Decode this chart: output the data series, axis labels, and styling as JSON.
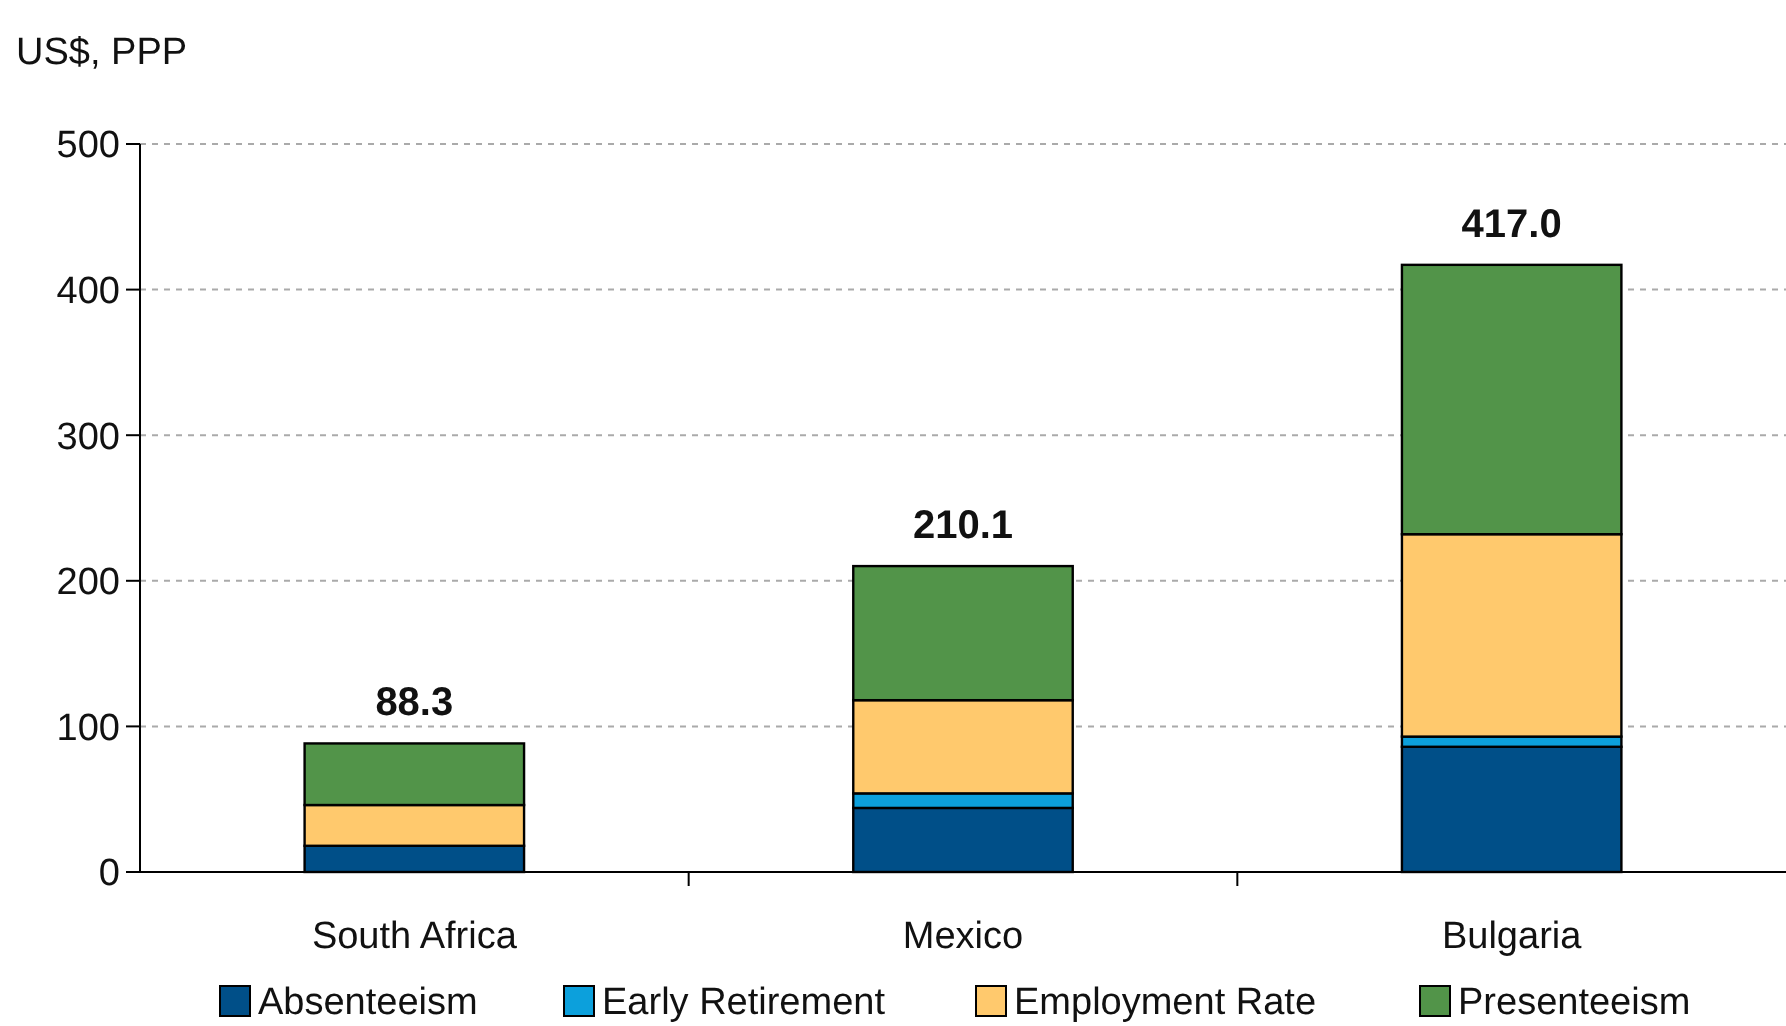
{
  "chart_data": {
    "type": "bar",
    "stacked": true,
    "ylabel": "US$, PPP",
    "categories": [
      "South Africa",
      "Mexico",
      "Bulgaria"
    ],
    "series": [
      {
        "name": "Absenteeism",
        "color": "#004f88",
        "values": [
          18,
          44,
          86
        ]
      },
      {
        "name": "Early Retirement",
        "color": "#0ca0dc",
        "values": [
          null,
          10,
          7
        ]
      },
      {
        "name": "Employment Rate",
        "color": "#ffc96d",
        "values": [
          28,
          64,
          139
        ]
      },
      {
        "name": "Presenteeism",
        "color": "#529449",
        "values": [
          42.3,
          92.1,
          185
        ]
      }
    ],
    "totals": [
      "88.3",
      "210.1",
      "417.0"
    ],
    "ylim": [
      0,
      500
    ],
    "yticks": [
      0,
      100,
      200,
      300,
      400,
      500
    ],
    "grid": "y",
    "legend": "bottom"
  }
}
